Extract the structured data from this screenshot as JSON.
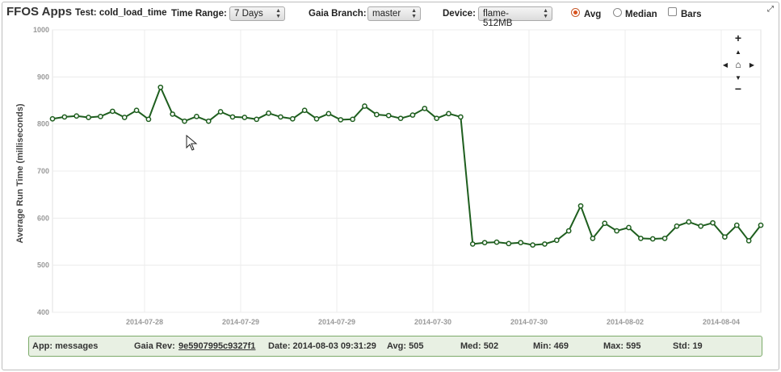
{
  "toolbar": {
    "app_title": "FFOS Apps",
    "test": "Test: cold_load_time",
    "time_range_label": "Time Range:",
    "time_range_value": "7 Days",
    "gaia_branch_label": "Gaia Branch:",
    "gaia_branch_value": "master",
    "device_label": "Device:",
    "device_value": "flame-512MB",
    "avg_label": "Avg",
    "median_label": "Median",
    "bars_label": "Bars",
    "selected_mode": "Avg"
  },
  "nav": {
    "zoom_in": "+",
    "zoom_out": "−",
    "home": "⌂"
  },
  "chart_data": {
    "type": "line",
    "title": "",
    "ylabel": "Average Run Time (milliseconds)",
    "xlabel": "",
    "ylim": [
      400,
      1000
    ],
    "yticks": [
      "400",
      "500",
      "600",
      "700",
      "800",
      "900",
      "1000"
    ],
    "xticks": [
      "2014-07-28",
      "2014-07-29",
      "2014-07-29",
      "2014-07-30",
      "2014-07-30",
      "2014-08-02",
      "2014-08-04"
    ],
    "grid": true,
    "color": "#1e5e1e",
    "series": [
      {
        "values": [
          811,
          815,
          817,
          814,
          816,
          827,
          814,
          829,
          810,
          878,
          821,
          806,
          816,
          806,
          826,
          815,
          814,
          810,
          823,
          815,
          811,
          829,
          811,
          822,
          809,
          810,
          838,
          820,
          818,
          812,
          819,
          833,
          812,
          822,
          815,
          545,
          548,
          549,
          546,
          548,
          543,
          545,
          553,
          573,
          626,
          557,
          589,
          573,
          580,
          557,
          556,
          557,
          583,
          592,
          583,
          590,
          560,
          585,
          552,
          585
        ]
      }
    ]
  },
  "stats": {
    "app": "App: messages",
    "gaia_rev_label": "Gaia Rev:",
    "gaia_rev": "9e5907995c9327f1",
    "date": "Date: 2014-08-03 09:31:29",
    "avg": "Avg: 505",
    "med": "Med: 502",
    "min": "Min: 469",
    "max": "Max: 595",
    "std": "Std: 19"
  }
}
